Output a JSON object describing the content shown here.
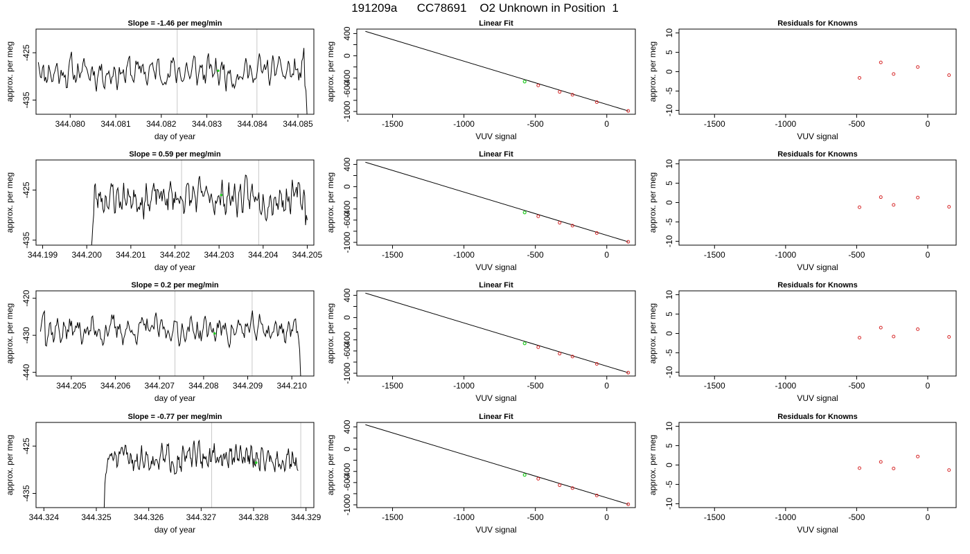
{
  "figure": {
    "title": "191209a      CC78691    O2 Unknown in Position  1"
  },
  "chart_data": [
    {
      "panel": "row1-time-series",
      "type": "line",
      "title": "Slope =  -1.46  per meg/min",
      "xlabel": "day of year",
      "ylabel": "approx. per meg",
      "xlim": [
        344.07925,
        344.08535
      ],
      "ylim": [
        -438,
        -420
      ],
      "xticks": [
        344.08,
        344.081,
        344.082,
        344.083,
        344.084,
        344.085
      ],
      "xtick_labels": [
        "344.080",
        "344.081",
        "344.082",
        "344.083",
        "344.084",
        "344.085"
      ],
      "yticks": [
        -425,
        -435
      ],
      "ytick_labels": [
        "-425",
        "-435"
      ],
      "vlines": [
        344.08235,
        344.0841
      ],
      "series_start": 344.0793,
      "series_end": 344.0852,
      "series_level": -429.0,
      "series_noise": 2.6,
      "series_seed": 11,
      "series_start_values": [
        -427.0,
        -428.5
      ],
      "series_end_values": [
        -424.0,
        -432.0,
        -433.0,
        -438.0
      ],
      "marker": {
        "x": 344.08325,
        "y": -428.8
      }
    },
    {
      "panel": "row1-linear-fit",
      "type": "scatter",
      "title": "Linear Fit",
      "xlabel": "VUV signal",
      "ylabel": "approx. per meg",
      "xlim": [
        -1750,
        200
      ],
      "ylim": [
        -1050,
        480
      ],
      "xticks": [
        -1500,
        -1000,
        -500,
        0
      ],
      "xtick_labels": [
        "-1500",
        "-1000",
        "-500",
        "0"
      ],
      "yticks": [
        -1000,
        -800,
        -600,
        -400,
        -200,
        0,
        200,
        400
      ],
      "ytick_labels": [
        "-1000",
        "",
        "-600",
        "-400",
        "",
        "0",
        "",
        "400"
      ],
      "fit_line": {
        "x": [
          -1690,
          150
        ],
        "y": [
          440,
          -990
        ]
      },
      "known_points": {
        "x": [
          -480,
          -330,
          -240,
          -70,
          150
        ],
        "y": [
          -532,
          -648,
          -700,
          -832,
          -990
        ]
      },
      "unknown_point": {
        "x": -575,
        "y": -463
      }
    },
    {
      "panel": "row1-residuals",
      "type": "scatter",
      "title": "Residuals for Knowns",
      "xlabel": "VUV signal",
      "ylabel": "approx. per meg",
      "xlim": [
        -1750,
        200
      ],
      "ylim": [
        -11,
        11
      ],
      "xticks": [
        -1500,
        -1000,
        -500,
        0
      ],
      "xtick_labels": [
        "-1500",
        "-1000",
        "-500",
        "0"
      ],
      "yticks": [
        10,
        5,
        0,
        -5,
        -10
      ],
      "ytick_labels": [
        "10",
        "5",
        "0",
        "-5",
        "-10"
      ],
      "residuals": {
        "x": [
          -480,
          -330,
          -240,
          -70,
          150
        ],
        "y": [
          -1.6,
          2.4,
          -0.6,
          1.2,
          -0.9
        ]
      }
    },
    {
      "panel": "row2-time-series",
      "type": "line",
      "title": "Slope =  0.59  per meg/min",
      "xlabel": "day of year",
      "ylabel": "approx. per meg",
      "xlim": [
        344.19885,
        344.20515
      ],
      "ylim": [
        -436,
        -419
      ],
      "xticks": [
        344.199,
        344.2,
        344.201,
        344.202,
        344.203,
        344.204,
        344.205
      ],
      "xtick_labels": [
        "344.199",
        "344.200",
        "344.201",
        "344.202",
        "344.203",
        "344.204",
        "344.205"
      ],
      "yticks": [
        -425,
        -435
      ],
      "ytick_labels": [
        "-425",
        "-435"
      ],
      "vlines": [
        344.20215,
        344.2039
      ],
      "series_start": 344.2001,
      "series_end": 344.205,
      "series_level": -426.5,
      "series_noise": 2.6,
      "series_seed": 23,
      "series_start_values": [
        -437.0,
        -435.0,
        -432.0,
        -430.0
      ],
      "series_end_values": [
        -432.0,
        -430.0,
        -431.0
      ],
      "marker": {
        "x": 344.20305,
        "y": -426.0
      }
    },
    {
      "panel": "row2-linear-fit",
      "type": "scatter",
      "title": "Linear Fit",
      "xlabel": "VUV signal",
      "ylabel": "approx. per meg",
      "xlim": [
        -1750,
        200
      ],
      "ylim": [
        -1050,
        480
      ],
      "xticks": [
        -1500,
        -1000,
        -500,
        0
      ],
      "xtick_labels": [
        "-1500",
        "-1000",
        "-500",
        "0"
      ],
      "yticks": [
        -1000,
        -800,
        -600,
        -400,
        -200,
        0,
        200,
        400
      ],
      "ytick_labels": [
        "-1000",
        "",
        "-600",
        "-400",
        "",
        "0",
        "",
        "400"
      ],
      "fit_line": {
        "x": [
          -1690,
          150
        ],
        "y": [
          440,
          -990
        ]
      },
      "known_points": {
        "x": [
          -480,
          -330,
          -240,
          -70,
          150
        ],
        "y": [
          -532,
          -648,
          -700,
          -832,
          -990
        ]
      },
      "unknown_point": {
        "x": -575,
        "y": -463
      }
    },
    {
      "panel": "row2-residuals",
      "type": "scatter",
      "title": "Residuals for Knowns",
      "xlabel": "VUV signal",
      "ylabel": "approx. per meg",
      "xlim": [
        -1750,
        200
      ],
      "ylim": [
        -11,
        11
      ],
      "xticks": [
        -1500,
        -1000,
        -500,
        0
      ],
      "xtick_labels": [
        "-1500",
        "-1000",
        "-500",
        "0"
      ],
      "yticks": [
        10,
        5,
        0,
        -5,
        -10
      ],
      "ytick_labels": [
        "10",
        "5",
        "0",
        "-5",
        "-10"
      ],
      "residuals": {
        "x": [
          -480,
          -330,
          -240,
          -70,
          150
        ],
        "y": [
          -1.2,
          1.4,
          -0.6,
          1.3,
          -1.1
        ]
      }
    },
    {
      "panel": "row3-time-series",
      "type": "line",
      "title": "Slope =  0.2  per meg/min",
      "xlabel": "day of year",
      "ylabel": "approx. per meg",
      "xlim": [
        344.2042,
        344.2105
      ],
      "ylim": [
        -441,
        -418
      ],
      "xticks": [
        344.205,
        344.206,
        344.207,
        344.208,
        344.209,
        344.21
      ],
      "xtick_labels": [
        "344.205",
        "344.206",
        "344.207",
        "344.208",
        "344.209",
        "344.210"
      ],
      "yticks": [
        -420,
        -430,
        -440
      ],
      "ytick_labels": [
        "-420",
        "-430",
        "-440"
      ],
      "vlines": [
        344.20735,
        344.2091
      ],
      "series_start": 344.2043,
      "series_end": 344.2102,
      "series_level": -428.5,
      "series_noise": 3.0,
      "series_seed": 37,
      "series_start_values": [
        -429.0,
        -427.0,
        -425.0,
        -424.0,
        -423.5
      ],
      "series_end_values": [
        -429.0,
        -431.0,
        -434.0,
        -441.0
      ],
      "marker": {
        "x": 344.20825,
        "y": -429.5
      }
    },
    {
      "panel": "row3-linear-fit",
      "type": "scatter",
      "title": "Linear Fit",
      "xlabel": "VUV signal",
      "ylabel": "approx. per meg",
      "xlim": [
        -1750,
        200
      ],
      "ylim": [
        -1050,
        480
      ],
      "xticks": [
        -1500,
        -1000,
        -500,
        0
      ],
      "xtick_labels": [
        "-1500",
        "-1000",
        "-500",
        "0"
      ],
      "yticks": [
        -1000,
        -800,
        -600,
        -400,
        -200,
        0,
        200,
        400
      ],
      "ytick_labels": [
        "-1000",
        "",
        "-600",
        "-400",
        "",
        "0",
        "",
        "400"
      ],
      "fit_line": {
        "x": [
          -1690,
          150
        ],
        "y": [
          440,
          -990
        ]
      },
      "known_points": {
        "x": [
          -480,
          -330,
          -240,
          -70,
          150
        ],
        "y": [
          -532,
          -648,
          -700,
          -832,
          -990
        ]
      },
      "unknown_point": {
        "x": -575,
        "y": -463
      }
    },
    {
      "panel": "row3-residuals",
      "type": "scatter",
      "title": "Residuals for Knowns",
      "xlabel": "VUV signal",
      "ylabel": "approx. per meg",
      "xlim": [
        -1750,
        200
      ],
      "ylim": [
        -11,
        11
      ],
      "xticks": [
        -1500,
        -1000,
        -500,
        0
      ],
      "xtick_labels": [
        "-1500",
        "-1000",
        "-500",
        "0"
      ],
      "yticks": [
        10,
        5,
        0,
        -5,
        -10
      ],
      "ytick_labels": [
        "10",
        "5",
        "0",
        "-5",
        "-10"
      ],
      "residuals": {
        "x": [
          -480,
          -330,
          -240,
          -70,
          150
        ],
        "y": [
          -1.1,
          1.5,
          -0.8,
          1.1,
          -0.9
        ]
      }
    },
    {
      "panel": "row4-time-series",
      "type": "line",
      "title": "Slope =  -0.77  per meg/min",
      "xlabel": "day of year",
      "ylabel": "approx. per meg",
      "xlim": [
        344.32385,
        344.32915
      ],
      "ylim": [
        -438,
        -420
      ],
      "xticks": [
        344.324,
        344.325,
        344.326,
        344.327,
        344.328,
        344.329
      ],
      "xtick_labels": [
        "344.324",
        "344.325",
        "344.326",
        "344.327",
        "344.328",
        "344.329"
      ],
      "yticks": [
        -425,
        -435
      ],
      "ytick_labels": [
        "-425",
        "-435"
      ],
      "vlines": [
        344.3272,
        344.3289
      ],
      "series_start": 344.32515,
      "series_end": 344.32885,
      "series_level": -427.5,
      "series_noise": 2.2,
      "series_seed": 51,
      "series_start_values": [
        -438.0,
        -433.0,
        -431.0,
        -430.5,
        -429.0
      ],
      "series_end_values": [
        -429.0,
        -430.0,
        -430.2
      ],
      "marker": {
        "x": 344.32805,
        "y": -428.5
      }
    },
    {
      "panel": "row4-linear-fit",
      "type": "scatter",
      "title": "Linear Fit",
      "xlabel": "VUV signal",
      "ylabel": "approx. per meg",
      "xlim": [
        -1750,
        200
      ],
      "ylim": [
        -1050,
        480
      ],
      "xticks": [
        -1500,
        -1000,
        -500,
        0
      ],
      "xtick_labels": [
        "-1500",
        "-1000",
        "-500",
        "0"
      ],
      "yticks": [
        -1000,
        -800,
        -600,
        -400,
        -200,
        0,
        200,
        400
      ],
      "ytick_labels": [
        "-1000",
        "",
        "-600",
        "-400",
        "",
        "0",
        "",
        "400"
      ],
      "fit_line": {
        "x": [
          -1690,
          150
        ],
        "y": [
          440,
          -990
        ]
      },
      "known_points": {
        "x": [
          -480,
          -330,
          -240,
          -70,
          150
        ],
        "y": [
          -532,
          -648,
          -700,
          -832,
          -990
        ]
      },
      "unknown_point": {
        "x": -575,
        "y": -463
      }
    },
    {
      "panel": "row4-residuals",
      "type": "scatter",
      "title": "Residuals for Knowns",
      "xlabel": "VUV signal",
      "ylabel": "approx. per meg",
      "xlim": [
        -1750,
        200
      ],
      "ylim": [
        -11,
        11
      ],
      "xticks": [
        -1500,
        -1000,
        -500,
        0
      ],
      "xtick_labels": [
        "-1500",
        "-1000",
        "-500",
        "0"
      ],
      "yticks": [
        10,
        5,
        0,
        -5,
        -10
      ],
      "ytick_labels": [
        "10",
        "5",
        "0",
        "-5",
        "-10"
      ],
      "residuals": {
        "x": [
          -480,
          -330,
          -240,
          -70,
          150
        ],
        "y": [
          -0.8,
          0.8,
          -0.9,
          2.2,
          -1.3
        ]
      }
    }
  ],
  "colors": {
    "series": "#000000",
    "vline": "#c8c8c8",
    "known_point": "#d62728",
    "unknown_point": "#22cc22",
    "axis": "#000000"
  }
}
